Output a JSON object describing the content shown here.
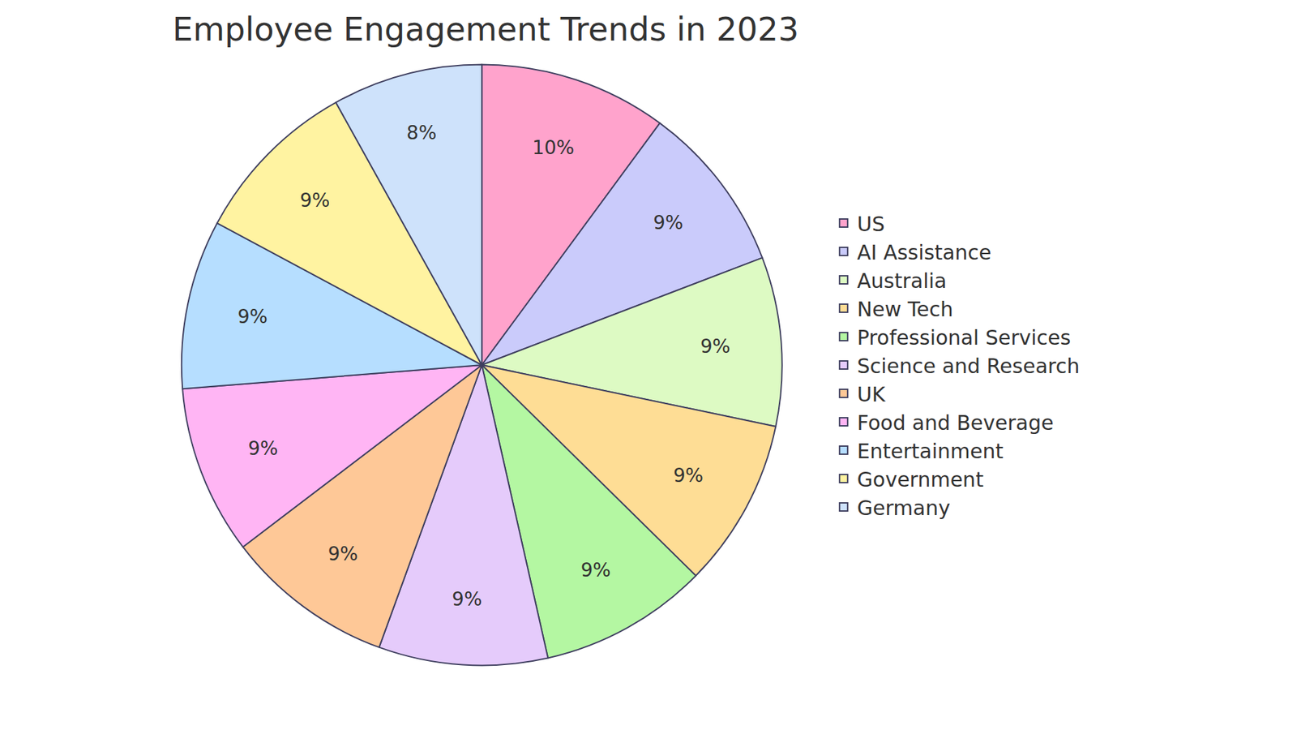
{
  "chart_data": {
    "type": "pie",
    "title": "Employee Engagement Trends in 2023",
    "categories": [
      "US",
      "AI Assistance",
      "Australia",
      "New Tech",
      "Professional Services",
      "Science and Research",
      "UK",
      "Food and Beverage",
      "Entertainment",
      "Government",
      "Germany"
    ],
    "values": [
      10,
      9,
      9,
      9,
      9,
      9,
      9,
      9,
      9,
      9,
      8
    ],
    "value_labels": [
      "10%",
      "9%",
      "9%",
      "9%",
      "9%",
      "9%",
      "9%",
      "9%",
      "9%",
      "9%",
      "8%"
    ],
    "colors": [
      "#FFA3CC",
      "#CACBFB",
      "#DDFAC3",
      "#FEDD95",
      "#B4F7A2",
      "#E5CBFB",
      "#FEC897",
      "#FFB5F4",
      "#B6DEFF",
      "#FFF3A1",
      "#CEE2FB"
    ],
    "data_labels": true,
    "legend": "right"
  }
}
